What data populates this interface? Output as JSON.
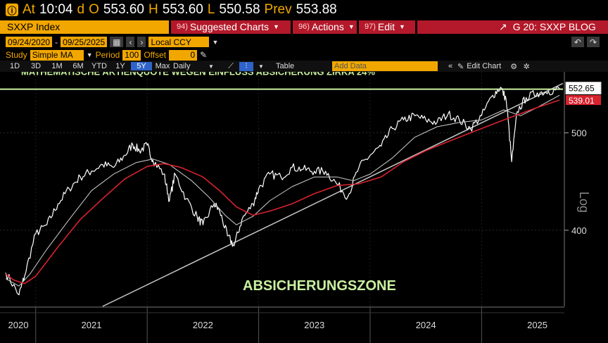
{
  "quote": {
    "at_label": "At",
    "time": "10:04",
    "d_label": "d",
    "o_label": "O",
    "open": "553.60",
    "h_label": "H",
    "high": "553.60",
    "l_label": "L",
    "low": "550.58",
    "prev_label": "Prev",
    "prev": "553.88"
  },
  "toolbar": {
    "ticker": "SXXP Index",
    "suggested": {
      "num": "94)",
      "label": "Suggested Charts"
    },
    "actions": {
      "num": "96)",
      "label": "Actions"
    },
    "edit": {
      "num": "97)",
      "label": "Edit"
    },
    "chart_name": "G 20: SXXP BLOG"
  },
  "range": {
    "start": "09/24/2020",
    "end": "09/25/2025",
    "currency": "Local CCY"
  },
  "study": {
    "label": "Study",
    "type": "Simple MA",
    "period_label": "Period",
    "period": "100",
    "offset_label": "Offset",
    "offset": "0"
  },
  "periods": [
    "1D",
    "3D",
    "1M",
    "6M",
    "YTD",
    "1Y",
    "5Y",
    "Max"
  ],
  "selected_period": "5Y",
  "frequency": "Daily",
  "table_label": "Table",
  "add_data_placeholder": "Add Data",
  "edit_chart_label": "Edit Chart",
  "colors": {
    "accent": "#f2a700",
    "button": "#b3192a",
    "price": "#ffffff",
    "ma_red": "#d8222e",
    "trend": "#c8c8c8",
    "annotation": "#c9f0a0"
  },
  "chart_data": {
    "type": "line",
    "scale": "log",
    "ylabel": "Log",
    "yticks": [
      400,
      500
    ],
    "ylim": [
      336,
      575
    ],
    "xticks": [
      "2020",
      "2021",
      "2022",
      "2023",
      "2024",
      "2025"
    ],
    "xlim": [
      2020.73,
      2025.73
    ],
    "last_price": "552.65",
    "last_ma": "539.01",
    "hline": {
      "value": 552.65,
      "label": "MATHEMATISCHE AKTIENQUOTE WEGEN EINFLUSS ABSICHERUNG ZIRKA 24%"
    },
    "zone_label": "ABSICHERUNGSZONE",
    "trendline": [
      {
        "x": 2021.6,
        "y": 336
      },
      {
        "x": 2025.73,
        "y": 560
      }
    ],
    "series": [
      {
        "values": [
          [
            2020.73,
            363
          ],
          [
            2020.85,
            345
          ],
          [
            2020.9,
            360
          ],
          [
            2021.0,
            397
          ],
          [
            2021.1,
            405
          ],
          [
            2021.2,
            425
          ],
          [
            2021.3,
            440
          ],
          [
            2021.4,
            452
          ],
          [
            2021.5,
            458
          ],
          [
            2021.6,
            465
          ],
          [
            2021.7,
            462
          ],
          [
            2021.8,
            475
          ],
          [
            2021.87,
            487
          ],
          [
            2021.93,
            480
          ],
          [
            2022.0,
            486
          ],
          [
            2022.05,
            470
          ],
          [
            2022.15,
            455
          ],
          [
            2022.2,
            428
          ],
          [
            2022.25,
            455
          ],
          [
            2022.35,
            430
          ],
          [
            2022.45,
            412
          ],
          [
            2022.5,
            405
          ],
          [
            2022.6,
            425
          ],
          [
            2022.65,
            418
          ],
          [
            2022.72,
            395
          ],
          [
            2022.78,
            386
          ],
          [
            2022.85,
            410
          ],
          [
            2022.95,
            425
          ],
          [
            2023.0,
            440
          ],
          [
            2023.1,
            455
          ],
          [
            2023.2,
            452
          ],
          [
            2023.3,
            462
          ],
          [
            2023.4,
            460
          ],
          [
            2023.5,
            458
          ],
          [
            2023.6,
            458
          ],
          [
            2023.7,
            445
          ],
          [
            2023.8,
            432
          ],
          [
            2023.9,
            462
          ],
          [
            2024.0,
            475
          ],
          [
            2024.1,
            485
          ],
          [
            2024.2,
            505
          ],
          [
            2024.3,
            515
          ],
          [
            2024.4,
            520
          ],
          [
            2024.5,
            515
          ],
          [
            2024.6,
            512
          ],
          [
            2024.7,
            522
          ],
          [
            2024.8,
            515
          ],
          [
            2024.9,
            505
          ],
          [
            2025.0,
            520
          ],
          [
            2025.1,
            545
          ],
          [
            2025.17,
            555
          ],
          [
            2025.22,
            540
          ],
          [
            2025.27,
            468
          ],
          [
            2025.32,
            525
          ],
          [
            2025.4,
            542
          ],
          [
            2025.5,
            548
          ],
          [
            2025.6,
            550
          ],
          [
            2025.7,
            553
          ]
        ]
      },
      {
        "values": [
          [
            2020.73,
            358
          ],
          [
            2020.85,
            352
          ],
          [
            2020.95,
            362
          ],
          [
            2021.1,
            383
          ],
          [
            2021.3,
            410
          ],
          [
            2021.5,
            438
          ],
          [
            2021.7,
            455
          ],
          [
            2021.9,
            467
          ],
          [
            2022.05,
            471
          ],
          [
            2022.2,
            465
          ],
          [
            2022.4,
            448
          ],
          [
            2022.55,
            432
          ],
          [
            2022.7,
            414
          ],
          [
            2022.8,
            405
          ],
          [
            2022.95,
            413
          ],
          [
            2023.1,
            428
          ],
          [
            2023.3,
            442
          ],
          [
            2023.5,
            452
          ],
          [
            2023.7,
            452
          ],
          [
            2023.85,
            448
          ],
          [
            2024.0,
            455
          ],
          [
            2024.2,
            472
          ],
          [
            2024.4,
            495
          ],
          [
            2024.6,
            507
          ],
          [
            2024.8,
            512
          ],
          [
            2025.0,
            515
          ],
          [
            2025.2,
            527
          ],
          [
            2025.35,
            520
          ],
          [
            2025.5,
            530
          ],
          [
            2025.7,
            545
          ]
        ]
      },
      {
        "values": [
          [
            2020.73,
            362
          ],
          [
            2020.8,
            357
          ],
          [
            2020.9,
            354
          ],
          [
            2021.0,
            360
          ],
          [
            2021.2,
            385
          ],
          [
            2021.4,
            410
          ],
          [
            2021.6,
            430
          ],
          [
            2021.8,
            450
          ],
          [
            2022.0,
            463
          ],
          [
            2022.15,
            466
          ],
          [
            2022.3,
            462
          ],
          [
            2022.5,
            452
          ],
          [
            2022.65,
            438
          ],
          [
            2022.8,
            422
          ],
          [
            2022.95,
            414
          ],
          [
            2023.1,
            418
          ],
          [
            2023.3,
            425
          ],
          [
            2023.5,
            435
          ],
          [
            2023.7,
            443
          ],
          [
            2023.9,
            445
          ],
          [
            2024.1,
            452
          ],
          [
            2024.3,
            468
          ],
          [
            2024.5,
            480
          ],
          [
            2024.7,
            490
          ],
          [
            2024.9,
            500
          ],
          [
            2025.1,
            510
          ],
          [
            2025.3,
            520
          ],
          [
            2025.5,
            530
          ],
          [
            2025.7,
            539
          ]
        ]
      }
    ]
  }
}
